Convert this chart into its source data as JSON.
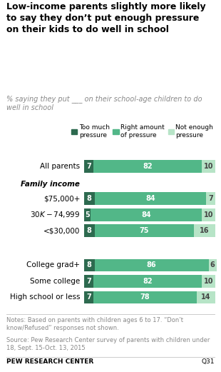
{
  "title": "Low-income parents slightly more likely\nto say they don’t put enough pressure\non their kids to do well in school",
  "subtitle": "% saying they put ___ on their school-age children to do\nwell in school",
  "categories": [
    "All parents",
    "$75,000+",
    "$30K-$74,999",
    "<$30,000",
    "College grad+",
    "Some college",
    "High school or less"
  ],
  "family_income_label": "Family income",
  "too_much": [
    7,
    8,
    5,
    8,
    8,
    7,
    7
  ],
  "right_amount": [
    82,
    84,
    84,
    75,
    86,
    82,
    78
  ],
  "not_enough": [
    10,
    7,
    10,
    16,
    6,
    10,
    14
  ],
  "color_too_much": "#2d6a4f",
  "color_right": "#52b788",
  "color_not_enough": "#b7e4c7",
  "notes": "Notes: Based on parents with children ages 6 to 17. “Don’t\nknow/Refused” responses not shown.",
  "source": "Source: Pew Research Center survey of parents with children under\n18, Sept. 15-Oct. 13, 2015",
  "brand": "PEW RESEARCH CENTER",
  "q_label": "Q31",
  "legend_labels": [
    "Too much\npressure",
    "Right amount\nof pressure",
    "Not enough\npressure"
  ],
  "figsize": [
    3.1,
    5.21
  ],
  "dpi": 100
}
